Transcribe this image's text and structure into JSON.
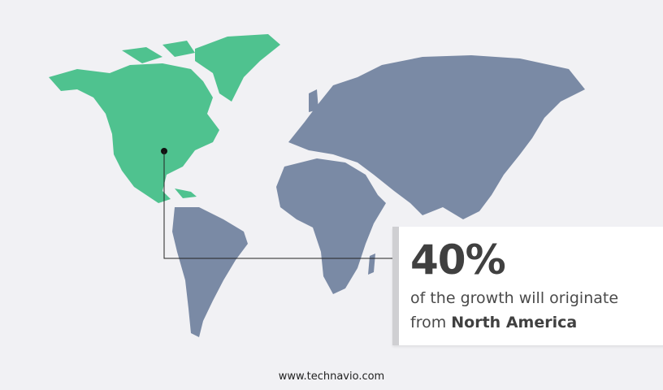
{
  "highlight": {
    "percentage": "40%",
    "line1": "of the growth will originate",
    "line2_prefix": "from",
    "region": "North America"
  },
  "colors": {
    "background": "#f1f1f4",
    "highlighted_region": "#4fc28f",
    "other_regions": "#7a8aa5",
    "text": "#404040"
  },
  "footer": {
    "website": "www.technavio.com"
  }
}
